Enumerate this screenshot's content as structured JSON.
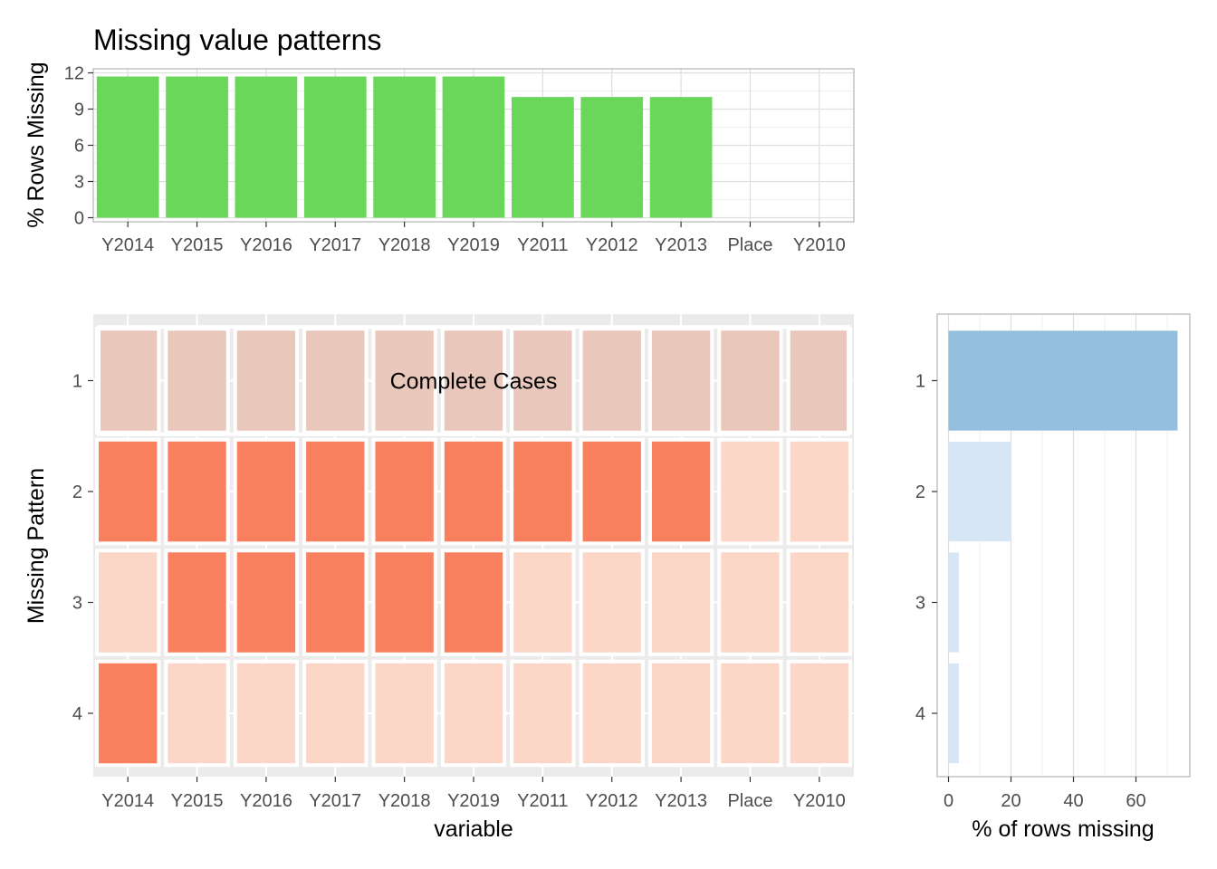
{
  "chart_data": [
    {
      "type": "bar",
      "title": "Missing value patterns",
      "xlabel": "",
      "ylabel": "% Rows Missing",
      "ylim": [
        0,
        12
      ],
      "yticks": [
        0,
        3,
        6,
        9,
        12
      ],
      "categories": [
        "Y2014",
        "Y2015",
        "Y2016",
        "Y2017",
        "Y2018",
        "Y2019",
        "Y2011",
        "Y2012",
        "Y2013",
        "Place",
        "Y2010"
      ],
      "values": [
        11.7,
        11.7,
        11.7,
        11.7,
        11.7,
        11.7,
        10.0,
        10.0,
        10.0,
        0,
        0
      ],
      "bar_color": "#6AD65A",
      "grid": true
    },
    {
      "type": "heatmap",
      "xlabel": "variable",
      "ylabel": "Missing Pattern",
      "categories": [
        "Y2014",
        "Y2015",
        "Y2016",
        "Y2017",
        "Y2018",
        "Y2019",
        "Y2011",
        "Y2012",
        "Y2013",
        "Place",
        "Y2010"
      ],
      "patterns": [
        "1",
        "2",
        "3",
        "4"
      ],
      "matrix": [
        [
          0,
          0,
          0,
          0,
          0,
          0,
          0,
          0,
          0,
          0,
          0
        ],
        [
          1,
          1,
          1,
          1,
          1,
          1,
          1,
          1,
          1,
          0,
          0
        ],
        [
          0,
          1,
          1,
          1,
          1,
          1,
          0,
          0,
          0,
          0,
          0
        ],
        [
          1,
          0,
          0,
          0,
          0,
          0,
          0,
          0,
          0,
          0,
          0
        ]
      ],
      "complete_row_index": 0,
      "annotation": "Complete Cases",
      "colors": {
        "missing": "#F8805F",
        "present": "#FCD7C8",
        "complete": "#E9C8BB"
      }
    },
    {
      "type": "bar",
      "orientation": "horizontal",
      "xlabel": "% of rows missing",
      "ylabel": "",
      "categories": [
        "1",
        "2",
        "3",
        "4"
      ],
      "values": [
        73.3,
        20.0,
        3.3,
        3.3
      ],
      "xlim": [
        0,
        75
      ],
      "xticks": [
        0,
        20,
        40,
        60
      ],
      "colors": [
        "#92BFDC",
        "#D7E6F4",
        "#D7E6F4",
        "#D7E6F4"
      ],
      "grid": true
    }
  ]
}
